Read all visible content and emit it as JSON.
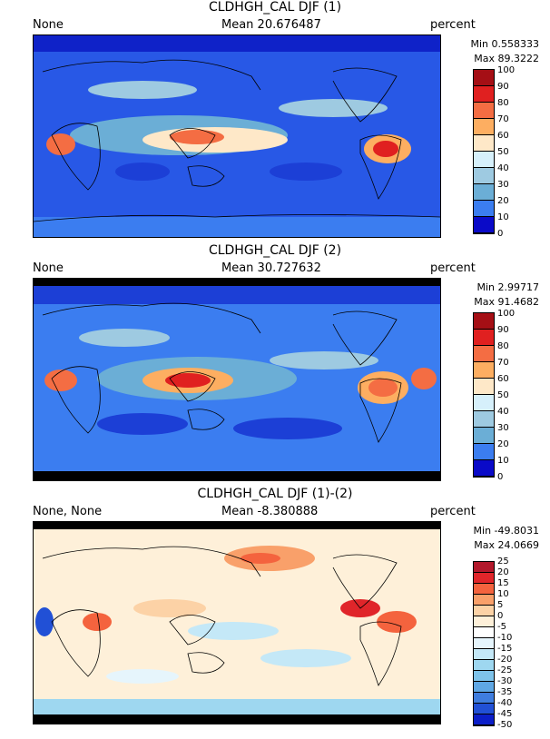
{
  "panels": [
    {
      "title": "CLDHGH_CAL DJF (1)",
      "left_label": "None",
      "mean_label": "Mean 20.676487",
      "units": "percent",
      "min_label": "Min 0.558333",
      "max_label": "Max 89.3222",
      "colorbar": {
        "ticks": [
          "100",
          "90",
          "80",
          "70",
          "60",
          "50",
          "40",
          "30",
          "20",
          "10",
          "0"
        ],
        "colors": [
          "#a50f15",
          "#e02020",
          "#f46d43",
          "#fdae61",
          "#fee8c8",
          "#d6f0fb",
          "#9ecae1",
          "#6baed6",
          "#3b7df0",
          "#1c3fd6",
          "#0a0ac8"
        ]
      }
    },
    {
      "title": "CLDHGH_CAL DJF (2)",
      "left_label": "None",
      "mean_label": "Mean 30.727632",
      "units": "percent",
      "min_label": "Min 2.99717",
      "max_label": "Max 91.4682",
      "colorbar": {
        "ticks": [
          "100",
          "90",
          "80",
          "70",
          "60",
          "50",
          "40",
          "30",
          "20",
          "10",
          "0"
        ],
        "colors": [
          "#a50f15",
          "#e02020",
          "#f46d43",
          "#fdae61",
          "#fee8c8",
          "#d6f0fb",
          "#9ecae1",
          "#6baed6",
          "#3b7df0",
          "#1c3fd6",
          "#0a0ac8"
        ]
      }
    },
    {
      "title": "CLDHGH_CAL DJF (1)-(2)",
      "left_label": "None, None",
      "mean_label": "Mean -8.380888",
      "units": "percent",
      "min_label": "Min -49.8031",
      "max_label": "Max 24.0669",
      "colorbar": {
        "ticks": [
          "25",
          "20",
          "15",
          "10",
          "5",
          "0",
          "-5",
          "-10",
          "-15",
          "-20",
          "-25",
          "-30",
          "-35",
          "-40",
          "-45",
          "-50"
        ],
        "colors": [
          "#b2182b",
          "#e0252a",
          "#f4633e",
          "#f9a06a",
          "#fcd2a6",
          "#fef0d9",
          "#ffffff",
          "#e6f5fc",
          "#c4e8f7",
          "#9ed7f0",
          "#7ec3ea",
          "#5fa7e4",
          "#3f7ddf",
          "#2150d6",
          "#0b1ec8"
        ]
      }
    }
  ]
}
